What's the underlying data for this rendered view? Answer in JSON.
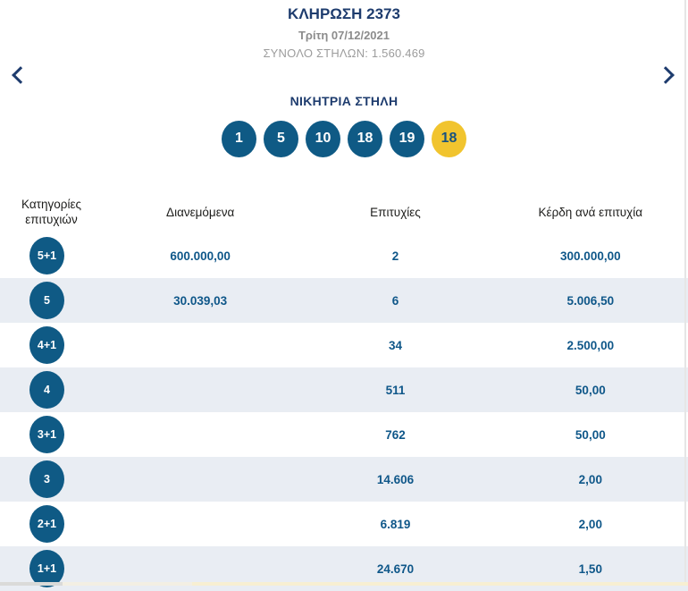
{
  "header": {
    "draw_title": "ΚΛΗΡΩΣΗ 2373",
    "draw_date": "Τρίτη 07/12/2021",
    "total_columns": "ΣΥΝΟΛΟ ΣΤΗΛΩΝ: 1.560.469"
  },
  "navigation": {
    "prev_icon": "chevron-left",
    "next_icon": "chevron-right"
  },
  "winning_column": {
    "title": "ΝΙΚΗΤΡΙΑ ΣΤΗΛΗ",
    "numbers": [
      "1",
      "5",
      "10",
      "18",
      "19"
    ],
    "joker": "18"
  },
  "table": {
    "headers": {
      "category": "Κατηγορίες επιτυχιών",
      "distributed": "Διανεμόμενα",
      "winners": "Επιτυχίες",
      "prize": "Κέρδη ανά επιτυχία"
    },
    "rows": [
      {
        "category": "5+1",
        "distributed": "600.000,00",
        "winners": "2",
        "prize": "300.000,00"
      },
      {
        "category": "5",
        "distributed": "30.039,03",
        "winners": "6",
        "prize": "5.006,50"
      },
      {
        "category": "4+1",
        "distributed": "",
        "winners": "34",
        "prize": "2.500,00"
      },
      {
        "category": "4",
        "distributed": "",
        "winners": "511",
        "prize": "50,00"
      },
      {
        "category": "3+1",
        "distributed": "",
        "winners": "762",
        "prize": "50,00"
      },
      {
        "category": "3",
        "distributed": "",
        "winners": "14.606",
        "prize": "2,00"
      },
      {
        "category": "2+1",
        "distributed": "",
        "winners": "6.819",
        "prize": "2,00"
      },
      {
        "category": "1+1",
        "distributed": "",
        "winners": "24.670",
        "prize": "1,50"
      }
    ]
  },
  "colors": {
    "ball_blue": "#0f5a85",
    "ball_yellow": "#f1c42e",
    "navy_text": "#1e3c6e",
    "value_blue": "#0f5789",
    "row_stripe": "#e9edf3"
  }
}
